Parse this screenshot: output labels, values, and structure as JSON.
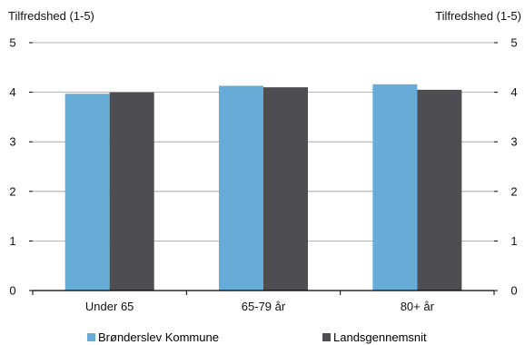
{
  "chart_data": {
    "type": "bar",
    "categories": [
      "Under 65",
      "65-79 år",
      "80+ år"
    ],
    "series": [
      {
        "name": "Brønderslev Kommune",
        "color": "#67acd6",
        "values": [
          3.97,
          4.13,
          4.16
        ]
      },
      {
        "name": "Landsgennemsnit",
        "color": "#4e4e52",
        "values": [
          4.0,
          4.1,
          4.05
        ]
      }
    ],
    "ylabel_left": "Tilfredshed (1-5)",
    "ylabel_right": "Tilfredshed (1-5)",
    "ylim": [
      0,
      5
    ],
    "yticks": [
      "0",
      "1",
      "2",
      "3",
      "4",
      "5"
    ],
    "grid": true,
    "legend": "bottom"
  }
}
